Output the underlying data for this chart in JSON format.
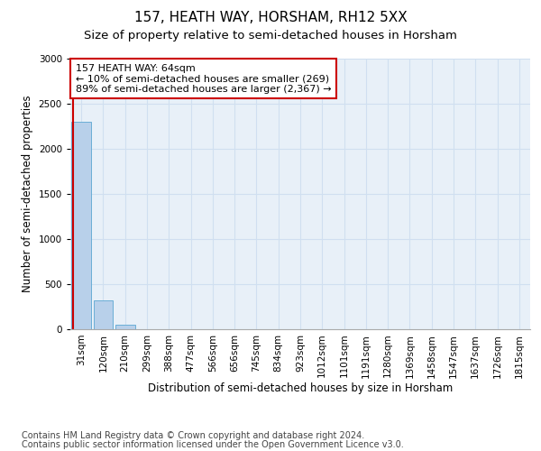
{
  "title": "157, HEATH WAY, HORSHAM, RH12 5XX",
  "subtitle": "Size of property relative to semi-detached houses in Horsham",
  "xlabel": "Distribution of semi-detached houses by size in Horsham",
  "ylabel": "Number of semi-detached properties",
  "footer_line1": "Contains HM Land Registry data © Crown copyright and database right 2024.",
  "footer_line2": "Contains public sector information licensed under the Open Government Licence v3.0.",
  "annotation_line1": "157 HEATH WAY: 64sqm",
  "annotation_line2": "← 10% of semi-detached houses are smaller (269)",
  "annotation_line3": "89% of semi-detached houses are larger (2,367) →",
  "bar_labels": [
    "31sqm",
    "120sqm",
    "210sqm",
    "299sqm",
    "388sqm",
    "477sqm",
    "566sqm",
    "656sqm",
    "745sqm",
    "834sqm",
    "923sqm",
    "1012sqm",
    "1101sqm",
    "1191sqm",
    "1280sqm",
    "1369sqm",
    "1458sqm",
    "1547sqm",
    "1637sqm",
    "1726sqm",
    "1815sqm"
  ],
  "bar_values": [
    2300,
    320,
    50,
    0,
    0,
    0,
    0,
    0,
    0,
    0,
    0,
    0,
    0,
    0,
    0,
    0,
    0,
    0,
    0,
    0,
    0
  ],
  "bar_color": "#b8d0ea",
  "bar_edge_color": "#6aaed6",
  "highlight_color": "#cc0000",
  "ylim": [
    0,
    3000
  ],
  "yticks": [
    0,
    500,
    1000,
    1500,
    2000,
    2500,
    3000
  ],
  "grid_color": "#d0dff0",
  "bg_color": "#e8f0f8",
  "annotation_box_color": "#cc0000",
  "title_fontsize": 11,
  "subtitle_fontsize": 9.5,
  "axis_label_fontsize": 8.5,
  "tick_fontsize": 7.5,
  "annotation_fontsize": 8,
  "footer_fontsize": 7
}
